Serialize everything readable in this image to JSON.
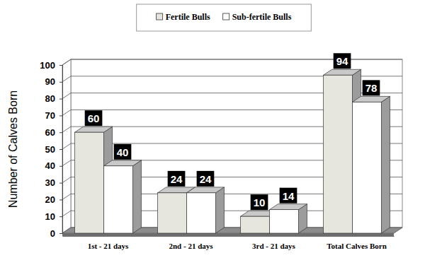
{
  "chart_data": {
    "type": "bar",
    "ylabel": "Number of Calves Born",
    "categories": [
      "1st - 21 days",
      "2nd - 21 days",
      "3rd - 21 days",
      "Total Calves Born"
    ],
    "series": [
      {
        "name": "Fertile Bulls",
        "color": "#e6e6de",
        "values": [
          60,
          24,
          10,
          94
        ]
      },
      {
        "name": "Sub-fertile Bulls",
        "color": "#ffffff",
        "values": [
          40,
          24,
          14,
          78
        ]
      }
    ],
    "ylim": [
      0,
      100
    ],
    "yticks": [
      0,
      10,
      20,
      30,
      40,
      50,
      60,
      70,
      80,
      90,
      100
    ],
    "grid": true,
    "data_labels": true,
    "legend": "top"
  }
}
